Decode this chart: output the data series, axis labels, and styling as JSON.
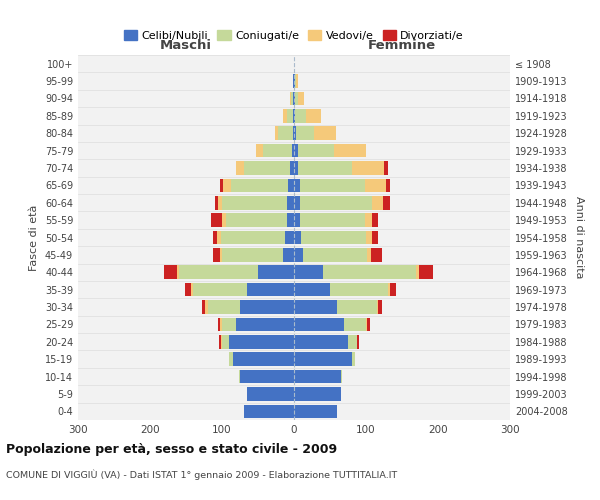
{
  "age_groups": [
    "0-4",
    "5-9",
    "10-14",
    "15-19",
    "20-24",
    "25-29",
    "30-34",
    "35-39",
    "40-44",
    "45-49",
    "50-54",
    "55-59",
    "60-64",
    "65-69",
    "70-74",
    "75-79",
    "80-84",
    "85-89",
    "90-94",
    "95-99",
    "100+"
  ],
  "birth_years": [
    "2004-2008",
    "1999-2003",
    "1994-1998",
    "1989-1993",
    "1984-1988",
    "1979-1983",
    "1974-1978",
    "1969-1973",
    "1964-1968",
    "1959-1963",
    "1954-1958",
    "1949-1953",
    "1944-1948",
    "1939-1943",
    "1934-1938",
    "1929-1933",
    "1924-1928",
    "1919-1923",
    "1914-1918",
    "1909-1913",
    "≤ 1908"
  ],
  "male": {
    "celibe": [
      70,
      65,
      75,
      85,
      90,
      80,
      75,
      65,
      50,
      15,
      12,
      10,
      10,
      8,
      5,
      3,
      2,
      2,
      1,
      1,
      0
    ],
    "coniugato": [
      0,
      0,
      2,
      5,
      10,
      20,
      45,
      75,
      110,
      85,
      90,
      85,
      90,
      80,
      65,
      40,
      20,
      8,
      3,
      1,
      0
    ],
    "vedovo": [
      0,
      0,
      0,
      0,
      2,
      3,
      3,
      3,
      3,
      3,
      5,
      5,
      5,
      10,
      10,
      10,
      5,
      5,
      2,
      0,
      0
    ],
    "divorziato": [
      0,
      0,
      0,
      0,
      2,
      3,
      5,
      8,
      18,
      10,
      5,
      15,
      5,
      5,
      0,
      0,
      0,
      0,
      0,
      0,
      0
    ]
  },
  "female": {
    "nubile": [
      60,
      65,
      65,
      80,
      75,
      70,
      60,
      50,
      40,
      12,
      10,
      8,
      8,
      8,
      5,
      5,
      3,
      2,
      1,
      1,
      0
    ],
    "coniugata": [
      0,
      0,
      2,
      5,
      12,
      30,
      55,
      80,
      130,
      90,
      90,
      90,
      100,
      90,
      75,
      50,
      25,
      15,
      5,
      2,
      0
    ],
    "vedova": [
      0,
      0,
      0,
      0,
      1,
      2,
      2,
      3,
      3,
      5,
      8,
      10,
      15,
      30,
      45,
      45,
      30,
      20,
      8,
      2,
      0
    ],
    "divorziata": [
      0,
      0,
      0,
      0,
      2,
      3,
      5,
      8,
      20,
      15,
      8,
      8,
      10,
      5,
      5,
      0,
      0,
      0,
      0,
      0,
      0
    ]
  },
  "colors": {
    "celibe_nubile": "#4472C4",
    "coniugato_a": "#C5D99A",
    "vedovo_a": "#F5C97A",
    "divorziato_a": "#CC2222"
  },
  "xlim": 300,
  "title": "Popolazione per età, sesso e stato civile - 2009",
  "subtitle": "COMUNE DI VIGGIÙ (VA) - Dati ISTAT 1° gennaio 2009 - Elaborazione TUTTITALIA.IT",
  "ylabel_left": "Fasce di età",
  "ylabel_right": "Anni di nascita",
  "xlabel_maschi": "Maschi",
  "xlabel_femmine": "Femmine",
  "legend_labels": [
    "Celibi/Nubili",
    "Coniugati/e",
    "Vedovi/e",
    "Divorziati/e"
  ],
  "bg_color": "#FFFFFF",
  "plot_bg_color": "#F2F2F2",
  "grid_color": "#DDDDDD"
}
